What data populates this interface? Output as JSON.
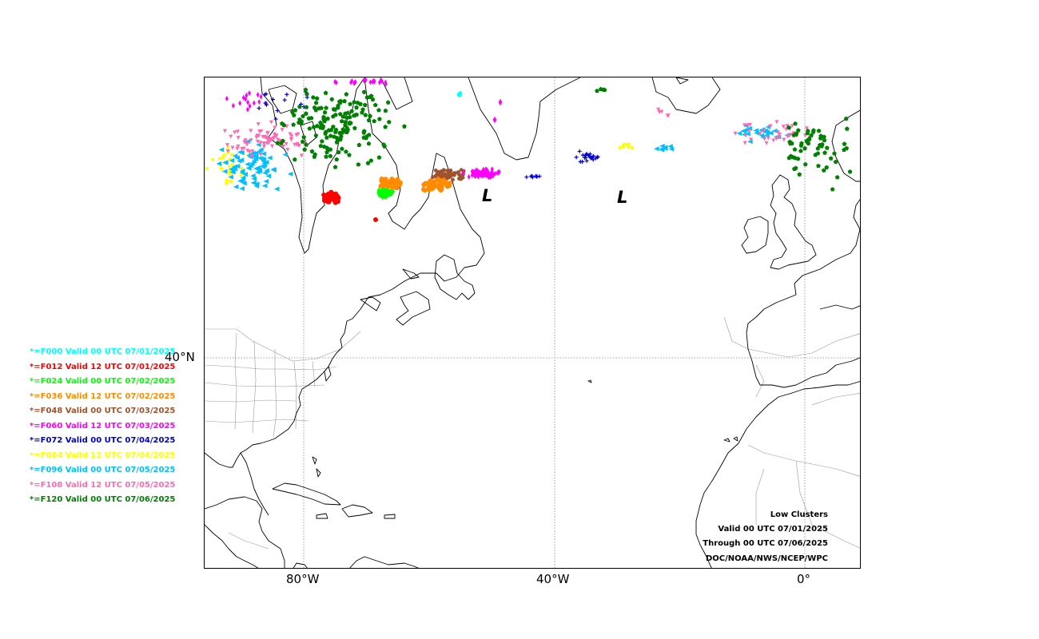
{
  "map": {
    "lat_labels": [
      "40°N"
    ],
    "lon_labels": [
      "80°W",
      "40°W",
      "0°"
    ],
    "low_marker": "L",
    "colors": {
      "coast": "#000000",
      "borders": "#888888",
      "grid": "#888888"
    }
  },
  "legend": [
    {
      "text": "*=F000 Valid 00 UTC 07/01/2025",
      "color": "#00ffff"
    },
    {
      "text": "*=F012 Valid 12 UTC 07/01/2025",
      "color": "#ff0000"
    },
    {
      "text": "*=F024 Valid 00 UTC 07/02/2025",
      "color": "#00ff00"
    },
    {
      "text": "*=F036 Valid 12 UTC 07/02/2025",
      "color": "#ff8c00"
    },
    {
      "text": "*=F048 Valid 00 UTC 07/03/2025",
      "color": "#a0522d"
    },
    {
      "text": "*=F060 Valid 12 UTC 07/03/2025",
      "color": "#ff00ff"
    },
    {
      "text": "*=F072 Valid 00 UTC 07/04/2025",
      "color": "#0000cd"
    },
    {
      "text": "*=F084 Valid 12 UTC 07/04/2025",
      "color": "#ffff00"
    },
    {
      "text": "*=F096 Valid 00 UTC 07/05/2025",
      "color": "#00bfff"
    },
    {
      "text": "*=F108 Valid 12 UTC 07/05/2025",
      "color": "#ff69b4"
    },
    {
      "text": "*=F120 Valid 00 UTC 07/06/2025",
      "color": "#008000"
    }
  ],
  "info": {
    "title": "Low Clusters",
    "valid": "Valid 00 UTC 07/01/2025",
    "through": "Through 00 UTC 07/06/2025",
    "credit": "DOC/NOAA/NWS/NCEP/WPC"
  }
}
